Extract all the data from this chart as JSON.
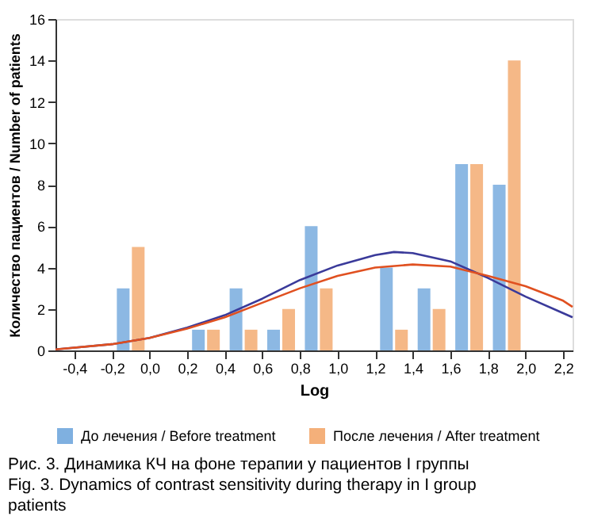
{
  "chart_data": {
    "type": "bar",
    "xlabel": "Log",
    "ylabel": "Количество пациентов / Number of patients",
    "xlim": [
      -0.5,
      2.25
    ],
    "xticks": [
      {
        "value": -0.4,
        "label": "-0,4"
      },
      {
        "value": -0.2,
        "label": "-0,2"
      },
      {
        "value": 0,
        "label": "0,0"
      },
      {
        "value": 0.2,
        "label": "0,2"
      },
      {
        "value": 0.4,
        "label": "0,4"
      },
      {
        "value": 0.6,
        "label": "0,6"
      },
      {
        "value": 0.8,
        "label": "0,8"
      },
      {
        "value": 1.0,
        "label": "1,0"
      },
      {
        "value": 1.2,
        "label": "1,2"
      },
      {
        "value": 1.4,
        "label": "1,4"
      },
      {
        "value": 1.6,
        "label": "1,6"
      },
      {
        "value": 1.8,
        "label": "1,8"
      },
      {
        "value": 2.0,
        "label": "2,0"
      },
      {
        "value": 2.2,
        "label": "2,2"
      }
    ],
    "ylim": [
      0,
      16
    ],
    "yticks": [
      0,
      2,
      4,
      6,
      8,
      10,
      12,
      14,
      16
    ],
    "grid": false,
    "legend": "bottom",
    "series": [
      {
        "name": "До лечения / Before treatment",
        "color": "#7fb0e0",
        "x": [
          -0.14,
          0.26,
          0.46,
          0.66,
          0.86,
          1.26,
          1.46,
          1.66,
          1.86
        ],
        "values": [
          3,
          1,
          3,
          1,
          6,
          4,
          3,
          9,
          8
        ]
      },
      {
        "name": "После лечения / After treatment",
        "color": "#f4b07a",
        "x": [
          -0.06,
          0.34,
          0.54,
          0.74,
          0.94,
          1.34,
          1.54,
          1.74,
          1.94
        ],
        "values": [
          5,
          1,
          1,
          2,
          3,
          1,
          2,
          9,
          14
        ]
      },
      {
        "type": "line",
        "color": "#3a3a9a",
        "x": [
          -0.5,
          -0.2,
          0.0,
          0.2,
          0.4,
          0.6,
          0.8,
          1.0,
          1.2,
          1.3,
          1.4,
          1.6,
          1.8,
          2.0,
          2.2,
          2.25
        ],
        "values": [
          0.05,
          0.3,
          0.6,
          1.1,
          1.7,
          2.5,
          3.4,
          4.1,
          4.6,
          4.75,
          4.7,
          4.3,
          3.5,
          2.6,
          1.8,
          1.6
        ]
      },
      {
        "type": "line",
        "color": "#e05020",
        "x": [
          -0.5,
          -0.2,
          0.0,
          0.2,
          0.4,
          0.6,
          0.8,
          1.0,
          1.2,
          1.4,
          1.6,
          1.8,
          2.0,
          2.2,
          2.25
        ],
        "values": [
          0.05,
          0.3,
          0.6,
          1.05,
          1.6,
          2.3,
          3.0,
          3.6,
          4.0,
          4.15,
          4.05,
          3.6,
          3.1,
          2.4,
          2.1
        ]
      }
    ],
    "annotations": [
      "Рис. 3. Динамика КЧ на фоне терапии у пациентов I группы",
      "Fig. 3. Dynamics of contrast sensitivity during therapy in I group patients"
    ]
  }
}
